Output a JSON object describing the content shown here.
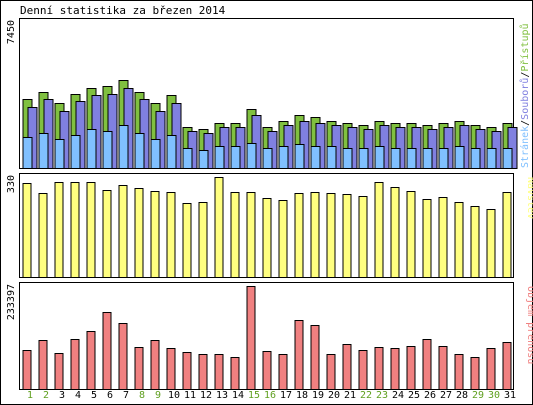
{
  "chart_data": {
    "type": "bar",
    "title": "Denní statistika za březen 2014",
    "categories": [
      "1",
      "2",
      "3",
      "4",
      "5",
      "6",
      "7",
      "8",
      "9",
      "10",
      "11",
      "12",
      "13",
      "14",
      "15",
      "16",
      "17",
      "18",
      "19",
      "20",
      "21",
      "22",
      "23",
      "24",
      "25",
      "26",
      "27",
      "28",
      "29",
      "30",
      "31"
    ],
    "weekend_days": [
      "1",
      "2",
      "8",
      "9",
      "15",
      "16",
      "22",
      "23",
      "29",
      "30"
    ],
    "panels": [
      {
        "id": "traffic",
        "ymax_label": "7450",
        "ymax": 7450,
        "legend": [
          "Stránek",
          "Souborů",
          "Přístupů"
        ],
        "series": [
          {
            "name": "Přístupů",
            "color": "#80c040",
            "values": [
              3500,
              3900,
              3300,
              3800,
              4100,
              4200,
              4500,
              3900,
              3300,
              3700,
              2100,
              2000,
              2300,
              2300,
              3000,
              2100,
              2400,
              2700,
              2600,
              2400,
              2300,
              2200,
              2400,
              2300,
              2300,
              2200,
              2300,
              2400,
              2200,
              2100,
              2300
            ]
          },
          {
            "name": "Souborů",
            "color": "#8080e0",
            "values": [
              3100,
              3500,
              2900,
              3400,
              3700,
              3800,
              4100,
              3500,
              2900,
              3300,
              1900,
              1800,
              2100,
              2100,
              2700,
              1900,
              2200,
              2400,
              2300,
              2200,
              2100,
              2000,
              2200,
              2100,
              2100,
              2000,
              2100,
              2200,
              2000,
              1900,
              2100
            ]
          },
          {
            "name": "Stránek",
            "color": "#80c0ff",
            "values": [
              1600,
              1800,
              1500,
              1700,
              2000,
              1900,
              2200,
              1800,
              1500,
              1700,
              1000,
              900,
              1100,
              1100,
              1300,
              1000,
              1100,
              1200,
              1100,
              1100,
              1000,
              1000,
              1100,
              1000,
              1000,
              1000,
              1000,
              1100,
              1000,
              1000,
              1000
            ]
          }
        ]
      },
      {
        "id": "visits",
        "ymax_label": "330",
        "ymax": 330,
        "legend": [
          "Návštěv"
        ],
        "series": [
          {
            "name": "Návštěv",
            "color": "#ffff80",
            "values": [
              310,
              278,
              313,
              312,
              312,
              286,
              302,
              294,
              284,
              280,
              244,
              247,
              330,
              281,
              280,
              260,
              254,
              278,
              280,
              276,
              273,
              266,
              312,
              296,
              285,
              257,
              265,
              247,
              233,
              224,
              280
            ]
          }
        ]
      },
      {
        "id": "volume",
        "ymax_label": "233397",
        "ymax": 233397,
        "legend": [
          "Objem přenosu"
        ],
        "series": [
          {
            "name": "Objem přenosu",
            "color": "#f08080",
            "values": [
              88000,
              111000,
              82000,
              113000,
              132000,
              174000,
              149000,
              96000,
              110000,
              92000,
              83000,
              80000,
              80000,
              72000,
              233397,
              87000,
              79000,
              157000,
              146000,
              79000,
              103000,
              89000,
              95000,
              92000,
              97000,
              114000,
              97000,
              80000,
              73000,
              92000,
              106000
            ]
          }
        ]
      }
    ]
  }
}
